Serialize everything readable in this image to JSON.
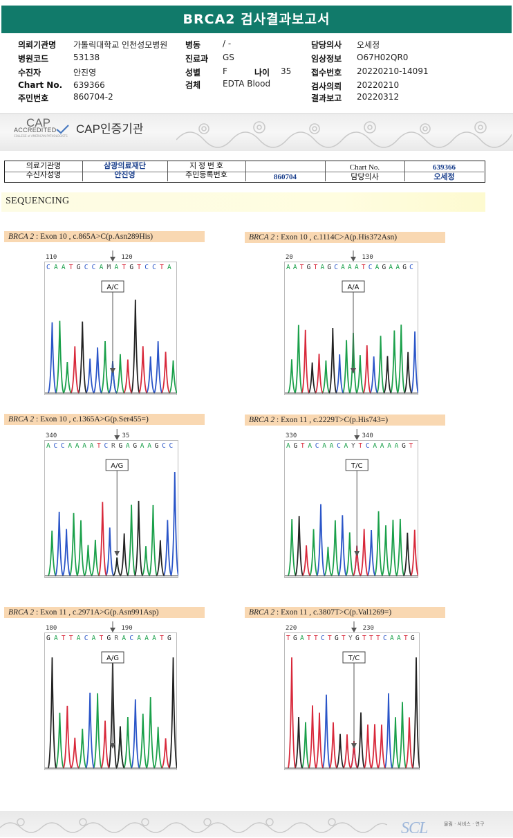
{
  "report_title": "BRCA2 검사결과보고서",
  "info": {
    "hospital_label": "의뢰기관명",
    "hospital": "가톨릭대학교 인천성모병원",
    "ward_label": "병동",
    "ward": "/ -",
    "doctor_label": "담당의사",
    "doctor": "오세정",
    "code_label": "병원코드",
    "code": "53138",
    "dept_label": "진료과",
    "dept": "GS",
    "clinical_label": "임상정보",
    "clinical": "O67H02QR0",
    "patient_label": "수진자",
    "patient": "안진영",
    "sex_label": "성별",
    "sex": "F",
    "age_label": "나이",
    "age": "35",
    "receipt_label": "접수번호",
    "receipt": "20220210-14091",
    "chart_label": "Chart No.",
    "chart": "639366",
    "specimen_label": "검체",
    "specimen": "EDTA Blood",
    "request_label": "검사의뢰",
    "request": "20220210",
    "rrn_label": "주민번호",
    "rrn": "860704-2",
    "result_label": "결과보고",
    "result": "20220312"
  },
  "cap": {
    "logo_big": "CAP",
    "logo_small": "ACCREDITED",
    "logo_tiny": "COLLEGE of AMERICAN PATHOLOGISTS",
    "text": "CAP인증기관"
  },
  "summary_table": {
    "r1c1": "의료기관명",
    "r1c2": "삼광의료재단",
    "r1c3": "지 정 번 호",
    "r1c4": "",
    "r1c5": "Chart No.",
    "r1c6": "639366",
    "r2c1": "수신자성명",
    "r2c2": "안진영",
    "r2c3": "주민등록번호",
    "r2c4": "860704",
    "r2c5": "담당의사",
    "r2c6": "오세정"
  },
  "section_title": "SEQUENCING",
  "panels": [
    {
      "gene": "BRCA 2",
      "desc": ": Exon 10 , c.865A>C(p.Asn289His)",
      "pos_left": "110",
      "pos_right": "120",
      "sequence": "CAATGCCAMATGTCCTA",
      "call": "A/C"
    },
    {
      "gene": "BRCA 2",
      "desc": ": Exon 10 , c.1114C>A(p.His372Asn)",
      "pos_left": "20",
      "pos_right": "130",
      "sequence": "AATGTAGCAAATCAGAAGC",
      "call": "A/A"
    },
    {
      "gene": "BRCA 2",
      "desc": ": Exon 10 , c.1365A>G(p.Ser455=)",
      "pos_left": "340",
      "pos_right": "35",
      "sequence": "ACCAAAATCRGAGAAGCC",
      "call": "A/G"
    },
    {
      "gene": "BRCA 2",
      "desc": ": Exon 11 , c.2229T>C(p.His743=)",
      "pos_left": "330",
      "pos_right": "340",
      "sequence": "AGTACAACAYTCAAAAGT",
      "call": "T/C"
    },
    {
      "gene": "BRCA 2",
      "desc": ": Exon 11 , c.2971A>G(p.Asn991Asp)",
      "pos_left": "180",
      "pos_right": "190",
      "sequence": "GATTACATGRACAAATG",
      "call": "A/G"
    },
    {
      "gene": "BRCA 2",
      "desc": ": Exon 11 , c.3807T>C(p.Val1269=)",
      "pos_left": "220",
      "pos_right": "230",
      "sequence": "TGATTCTGTYGTTTCAATG",
      "call": "T/C"
    }
  ],
  "footer": {
    "logo": "SCL",
    "text": "올림 · 서비스 · 연구"
  },
  "colors": {
    "title_band": "#117a6a",
    "A": "#1aa04a",
    "C": "#2a55c8",
    "G": "#222222",
    "T": "#d8283a",
    "label_bg": "#f9d8b2"
  }
}
